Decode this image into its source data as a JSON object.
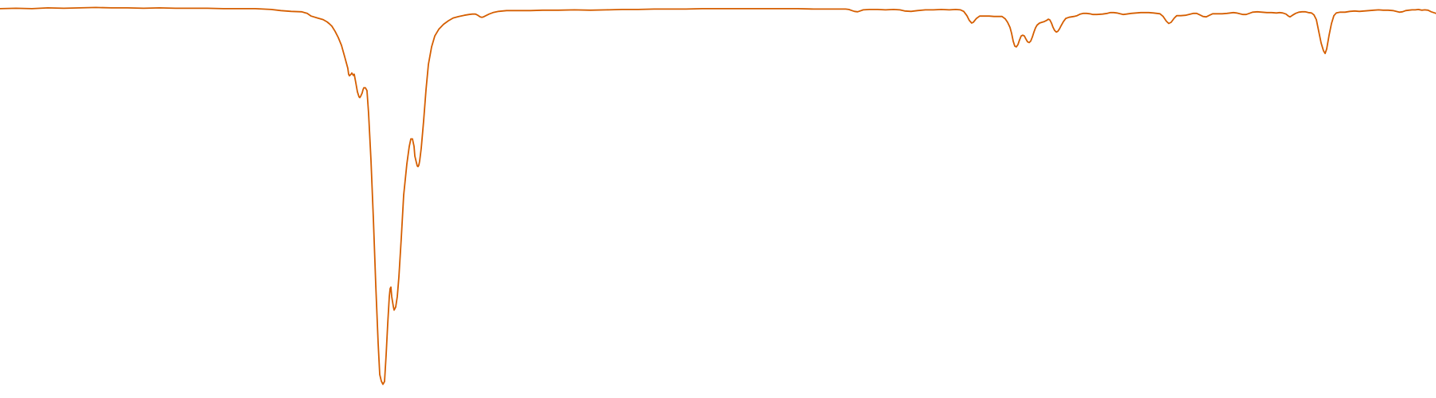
{
  "chart_data": {
    "type": "line",
    "title": "",
    "xlabel": "",
    "ylabel": "",
    "grid": false,
    "legend": "none",
    "xlim": [
      0,
      1800
    ],
    "ylim": [
      0,
      100
    ],
    "colors": {
      "line": "#d55e00",
      "background": "#ffffff"
    },
    "series": [
      {
        "name": "",
        "points": [
          [
            0,
            98.8
          ],
          [
            20,
            98.9
          ],
          [
            40,
            98.8
          ],
          [
            60,
            99.0
          ],
          [
            80,
            98.9
          ],
          [
            100,
            99.0
          ],
          [
            120,
            99.1
          ],
          [
            140,
            99.0
          ],
          [
            160,
            99.0
          ],
          [
            180,
            98.9
          ],
          [
            200,
            99.0
          ],
          [
            220,
            98.9
          ],
          [
            240,
            98.9
          ],
          [
            260,
            98.9
          ],
          [
            280,
            98.8
          ],
          [
            300,
            98.8
          ],
          [
            320,
            98.8
          ],
          [
            340,
            98.6
          ],
          [
            352,
            98.3
          ],
          [
            365,
            98.1
          ],
          [
            378,
            98.0
          ],
          [
            385,
            97.6
          ],
          [
            390,
            96.9
          ],
          [
            398,
            96.4
          ],
          [
            405,
            96.0
          ],
          [
            410,
            95.4
          ],
          [
            413,
            94.9
          ],
          [
            416,
            94.3
          ],
          [
            420,
            93.0
          ],
          [
            424,
            91.4
          ],
          [
            428,
            89.4
          ],
          [
            432,
            86.5
          ],
          [
            434,
            85.0
          ],
          [
            436,
            83.5
          ],
          [
            437,
            82.0
          ],
          [
            438,
            81.6
          ],
          [
            440,
            82.0
          ],
          [
            441,
            82.3
          ],
          [
            443,
            81.7
          ],
          [
            444,
            82.0
          ],
          [
            446,
            79.8
          ],
          [
            448,
            77.5
          ],
          [
            450,
            76.2
          ],
          [
            451,
            76.0
          ],
          [
            452,
            76.3
          ],
          [
            454,
            77.2
          ],
          [
            455,
            78.0
          ],
          [
            456,
            78.5
          ],
          [
            458,
            78.5
          ],
          [
            460,
            77.8
          ],
          [
            462,
            72.0
          ],
          [
            465,
            60.0
          ],
          [
            468,
            45.0
          ],
          [
            471,
            28.0
          ],
          [
            474,
            13.0
          ],
          [
            476,
            5.0
          ],
          [
            478,
            3.3
          ],
          [
            480,
            2.5
          ],
          [
            482,
            3.2
          ],
          [
            484,
            10.0
          ],
          [
            486,
            18.0
          ],
          [
            488,
            25.0
          ],
          [
            489,
            27.0
          ],
          [
            490,
            27.4
          ],
          [
            491,
            25.0
          ],
          [
            493,
            22.5
          ],
          [
            494,
            21.5
          ],
          [
            496,
            22.3
          ],
          [
            498,
            25.0
          ],
          [
            500,
            30.0
          ],
          [
            503,
            40.0
          ],
          [
            506,
            51.0
          ],
          [
            510,
            59.0
          ],
          [
            513,
            63.5
          ],
          [
            515,
            65.4
          ],
          [
            517,
            65.4
          ],
          [
            519,
            63.5
          ],
          [
            520,
            61.0
          ],
          [
            522,
            59.3
          ],
          [
            523,
            58.5
          ],
          [
            524,
            58.3
          ],
          [
            525,
            58.7
          ],
          [
            526,
            59.7
          ],
          [
            528,
            63.0
          ],
          [
            531,
            70.0
          ],
          [
            534,
            78.0
          ],
          [
            537,
            84.5
          ],
          [
            541,
            89.0
          ],
          [
            545,
            91.8
          ],
          [
            550,
            93.5
          ],
          [
            556,
            94.8
          ],
          [
            562,
            95.7
          ],
          [
            568,
            96.4
          ],
          [
            575,
            96.8
          ],
          [
            582,
            97.1
          ],
          [
            588,
            97.3
          ],
          [
            592,
            97.4
          ],
          [
            596,
            97.4
          ],
          [
            599,
            97.1
          ],
          [
            602,
            96.7
          ],
          [
            604,
            96.6
          ],
          [
            606,
            96.7
          ],
          [
            609,
            97.0
          ],
          [
            613,
            97.4
          ],
          [
            618,
            97.8
          ],
          [
            625,
            98.1
          ],
          [
            635,
            98.3
          ],
          [
            650,
            98.3
          ],
          [
            665,
            98.3
          ],
          [
            680,
            98.4
          ],
          [
            700,
            98.4
          ],
          [
            720,
            98.5
          ],
          [
            740,
            98.4
          ],
          [
            760,
            98.5
          ],
          [
            780,
            98.6
          ],
          [
            800,
            98.6
          ],
          [
            820,
            98.7
          ],
          [
            840,
            98.7
          ],
          [
            860,
            98.7
          ],
          [
            880,
            98.8
          ],
          [
            900,
            98.8
          ],
          [
            920,
            98.8
          ],
          [
            940,
            98.8
          ],
          [
            960,
            98.8
          ],
          [
            980,
            98.8
          ],
          [
            1000,
            98.8
          ],
          [
            1020,
            98.7
          ],
          [
            1040,
            98.7
          ],
          [
            1060,
            98.7
          ],
          [
            1064,
            98.6
          ],
          [
            1068,
            98.3
          ],
          [
            1071,
            98.1
          ],
          [
            1075,
            98.0
          ],
          [
            1078,
            98.2
          ],
          [
            1082,
            98.5
          ],
          [
            1090,
            98.6
          ],
          [
            1100,
            98.6
          ],
          [
            1110,
            98.5
          ],
          [
            1120,
            98.6
          ],
          [
            1128,
            98.5
          ],
          [
            1134,
            98.2
          ],
          [
            1142,
            98.1
          ],
          [
            1150,
            98.3
          ],
          [
            1160,
            98.5
          ],
          [
            1170,
            98.5
          ],
          [
            1180,
            98.6
          ],
          [
            1190,
            98.5
          ],
          [
            1198,
            98.6
          ],
          [
            1204,
            98.5
          ],
          [
            1208,
            98.1
          ],
          [
            1212,
            97.0
          ],
          [
            1215,
            95.8
          ],
          [
            1218,
            95.1
          ],
          [
            1220,
            95.3
          ],
          [
            1224,
            96.3
          ],
          [
            1228,
            96.9
          ],
          [
            1234,
            96.9
          ],
          [
            1240,
            96.9
          ],
          [
            1246,
            96.8
          ],
          [
            1250,
            96.8
          ],
          [
            1256,
            96.8
          ],
          [
            1260,
            96.2
          ],
          [
            1263,
            95.3
          ],
          [
            1266,
            94.0
          ],
          [
            1268,
            92.5
          ],
          [
            1270,
            90.5
          ],
          [
            1272,
            89.2
          ],
          [
            1274,
            89.0
          ],
          [
            1276,
            89.6
          ],
          [
            1278,
            90.8
          ],
          [
            1280,
            91.8
          ],
          [
            1282,
            92.0
          ],
          [
            1284,
            91.8
          ],
          [
            1286,
            91.0
          ],
          [
            1288,
            90.3
          ],
          [
            1290,
            90.1
          ],
          [
            1292,
            90.5
          ],
          [
            1294,
            91.5
          ],
          [
            1296,
            92.8
          ],
          [
            1298,
            93.9
          ],
          [
            1300,
            94.6
          ],
          [
            1303,
            95.1
          ],
          [
            1306,
            95.3
          ],
          [
            1309,
            95.5
          ],
          [
            1312,
            95.8
          ],
          [
            1314,
            96.1
          ],
          [
            1316,
            95.9
          ],
          [
            1318,
            95.1
          ],
          [
            1320,
            94.0
          ],
          [
            1322,
            93.2
          ],
          [
            1324,
            92.8
          ],
          [
            1326,
            93.0
          ],
          [
            1328,
            93.6
          ],
          [
            1330,
            94.4
          ],
          [
            1333,
            95.5
          ],
          [
            1336,
            96.3
          ],
          [
            1340,
            96.6
          ],
          [
            1346,
            96.8
          ],
          [
            1350,
            97.0
          ],
          [
            1354,
            97.4
          ],
          [
            1358,
            97.6
          ],
          [
            1362,
            97.6
          ],
          [
            1366,
            97.5
          ],
          [
            1370,
            97.3
          ],
          [
            1375,
            97.3
          ],
          [
            1382,
            97.4
          ],
          [
            1388,
            97.6
          ],
          [
            1392,
            97.8
          ],
          [
            1396,
            97.8
          ],
          [
            1400,
            97.7
          ],
          [
            1404,
            97.5
          ],
          [
            1408,
            97.3
          ],
          [
            1412,
            97.4
          ],
          [
            1418,
            97.6
          ],
          [
            1424,
            97.7
          ],
          [
            1430,
            97.8
          ],
          [
            1440,
            97.8
          ],
          [
            1446,
            97.7
          ],
          [
            1454,
            97.5
          ],
          [
            1458,
            96.8
          ],
          [
            1462,
            95.6
          ],
          [
            1465,
            95.0
          ],
          [
            1468,
            95.3
          ],
          [
            1472,
            96.4
          ],
          [
            1475,
            97.0
          ],
          [
            1480,
            97.0
          ],
          [
            1486,
            97.1
          ],
          [
            1492,
            97.4
          ],
          [
            1496,
            97.6
          ],
          [
            1500,
            97.6
          ],
          [
            1504,
            97.2
          ],
          [
            1508,
            96.8
          ],
          [
            1512,
            96.7
          ],
          [
            1516,
            97.1
          ],
          [
            1520,
            97.5
          ],
          [
            1526,
            97.5
          ],
          [
            1532,
            97.5
          ],
          [
            1538,
            97.6
          ],
          [
            1542,
            97.7
          ],
          [
            1546,
            97.8
          ],
          [
            1550,
            97.7
          ],
          [
            1554,
            97.5
          ],
          [
            1558,
            97.3
          ],
          [
            1562,
            97.3
          ],
          [
            1566,
            97.6
          ],
          [
            1570,
            97.9
          ],
          [
            1576,
            98.0
          ],
          [
            1582,
            97.9
          ],
          [
            1588,
            97.8
          ],
          [
            1594,
            97.8
          ],
          [
            1600,
            97.7
          ],
          [
            1604,
            97.8
          ],
          [
            1608,
            97.7
          ],
          [
            1612,
            97.4
          ],
          [
            1615,
            96.9
          ],
          [
            1617,
            96.7
          ],
          [
            1620,
            97.1
          ],
          [
            1624,
            97.6
          ],
          [
            1628,
            97.9
          ],
          [
            1632,
            98.0
          ],
          [
            1636,
            98.0
          ],
          [
            1640,
            97.8
          ],
          [
            1644,
            97.7
          ],
          [
            1647,
            97.2
          ],
          [
            1650,
            96.0
          ],
          [
            1653,
            93.0
          ],
          [
            1656,
            90.0
          ],
          [
            1659,
            88.0
          ],
          [
            1661,
            87.3
          ],
          [
            1663,
            88.5
          ],
          [
            1666,
            92.0
          ],
          [
            1669,
            95.0
          ],
          [
            1672,
            97.0
          ],
          [
            1675,
            97.7
          ],
          [
            1680,
            97.9
          ],
          [
            1686,
            97.9
          ],
          [
            1692,
            98.1
          ],
          [
            1698,
            98.2
          ],
          [
            1704,
            98.1
          ],
          [
            1710,
            98.2
          ],
          [
            1716,
            98.3
          ],
          [
            1722,
            98.4
          ],
          [
            1728,
            98.5
          ],
          [
            1734,
            98.4
          ],
          [
            1740,
            98.4
          ],
          [
            1746,
            98.3
          ],
          [
            1750,
            98.1
          ],
          [
            1754,
            97.9
          ],
          [
            1758,
            98.0
          ],
          [
            1762,
            98.3
          ],
          [
            1766,
            98.4
          ],
          [
            1770,
            98.5
          ],
          [
            1774,
            98.5
          ],
          [
            1778,
            98.6
          ],
          [
            1782,
            98.4
          ],
          [
            1786,
            98.5
          ],
          [
            1790,
            98.4
          ],
          [
            1794,
            98.0
          ],
          [
            1797,
            97.8
          ],
          [
            1800,
            97.6
          ]
        ]
      }
    ]
  }
}
